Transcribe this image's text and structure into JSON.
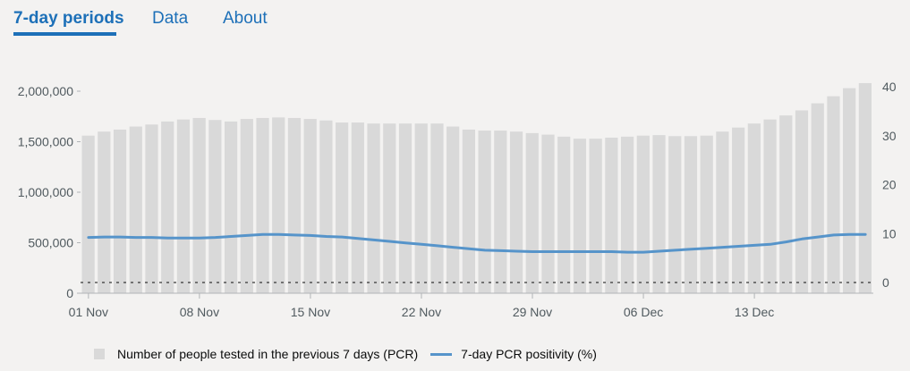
{
  "tabs": [
    {
      "label": "7-day periods",
      "active": true
    },
    {
      "label": "Data",
      "active": false
    },
    {
      "label": "About",
      "active": false
    }
  ],
  "colors": {
    "accent": "#1d70b8",
    "bar": "#d9d9d9",
    "line": "#5694ca",
    "background": "#f3f2f1"
  },
  "chart_data": {
    "type": "bar",
    "x_tick_labels": [
      "01 Nov",
      "08 Nov",
      "15 Nov",
      "22 Nov",
      "29 Nov",
      "06 Dec",
      "13 Dec"
    ],
    "y_left_ticks": [
      "0",
      "500,000",
      "1,000,000",
      "1,500,000",
      "2,000,000"
    ],
    "y_right_ticks": [
      "0",
      "10",
      "20",
      "30",
      "40"
    ],
    "ylim_left": [
      0,
      2000000
    ],
    "ylim_right": [
      0,
      40
    ],
    "grid": false,
    "legend_position": "bottom",
    "series": [
      {
        "name": "Number of people tested in the previous 7 days (PCR)",
        "type": "bar",
        "axis": "left",
        "values": [
          1560000,
          1600000,
          1620000,
          1650000,
          1670000,
          1700000,
          1720000,
          1735000,
          1715000,
          1700000,
          1725000,
          1735000,
          1740000,
          1735000,
          1725000,
          1710000,
          1690000,
          1690000,
          1680000,
          1680000,
          1680000,
          1680000,
          1680000,
          1650000,
          1620000,
          1610000,
          1610000,
          1600000,
          1585000,
          1570000,
          1550000,
          1530000,
          1530000,
          1540000,
          1550000,
          1560000,
          1565000,
          1555000,
          1555000,
          1560000,
          1600000,
          1640000,
          1680000,
          1720000,
          1760000,
          1810000,
          1880000,
          1950000,
          2030000,
          2080000
        ]
      },
      {
        "name": "7-day PCR positivity (%)",
        "type": "line",
        "axis": "right",
        "values": [
          9.2,
          9.3,
          9.3,
          9.2,
          9.2,
          9.1,
          9.1,
          9.1,
          9.2,
          9.4,
          9.6,
          9.8,
          9.8,
          9.7,
          9.6,
          9.4,
          9.3,
          9.0,
          8.7,
          8.4,
          8.1,
          7.8,
          7.5,
          7.2,
          6.9,
          6.6,
          6.5,
          6.4,
          6.3,
          6.3,
          6.3,
          6.3,
          6.3,
          6.3,
          6.2,
          6.2,
          6.4,
          6.6,
          6.8,
          7.0,
          7.2,
          7.4,
          7.6,
          7.8,
          8.3,
          8.9,
          9.3,
          9.7,
          9.8,
          9.8
        ]
      }
    ]
  },
  "legend": {
    "bar_label": "Number of people tested in the previous 7 days (PCR)",
    "line_label": "7-day PCR positivity (%)"
  }
}
